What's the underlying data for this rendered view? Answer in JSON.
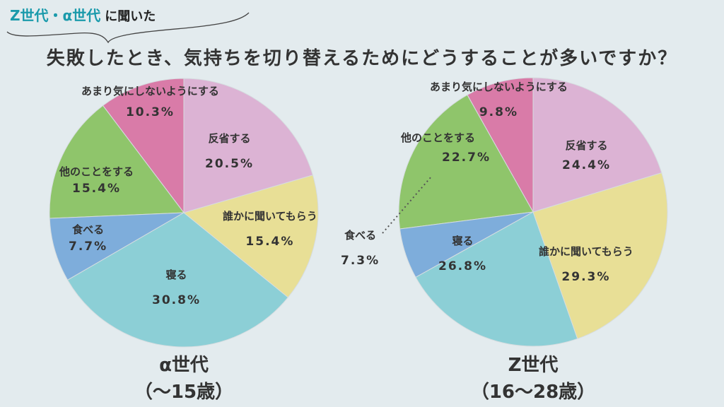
{
  "header": {
    "subtitle_highlight": "Z世代・α世代",
    "subtitle_rest": "に聞いた",
    "title": "失敗したとき、気持ちを切り替えるためにどうすることが多いですか？"
  },
  "colors": [
    "#dcb3d4",
    "#e8df96",
    "#8ccfd6",
    "#7eaddb",
    "#8fc56b",
    "#d97ba8"
  ],
  "chart_data": [
    {
      "type": "pie",
      "title": "α世代",
      "subtitle": "（〜15歳）",
      "labels": [
        "反省する",
        "誰かに聞いてもらう",
        "寝る",
        "食べる",
        "他のことをする",
        "あまり気にしないようにする"
      ],
      "values": [
        20.5,
        15.4,
        30.8,
        7.7,
        15.4,
        10.3
      ],
      "value_labels": [
        "20.5%",
        "15.4%",
        "30.8%",
        "7.7%",
        "15.4%",
        "10.3%"
      ]
    },
    {
      "type": "pie",
      "title": "Z世代",
      "subtitle": "（16〜28歳）",
      "labels": [
        "反省する",
        "誰かに聞いてもらう",
        "寝る",
        "食べる",
        "他のことをする",
        "あまり気にしないようにする"
      ],
      "values": [
        24.4,
        29.3,
        26.8,
        7.3,
        22.7,
        9.8
      ],
      "value_labels": [
        "24.4%",
        "29.3%",
        "26.8%",
        "7.3%",
        "22.7%",
        "9.8%"
      ]
    }
  ]
}
